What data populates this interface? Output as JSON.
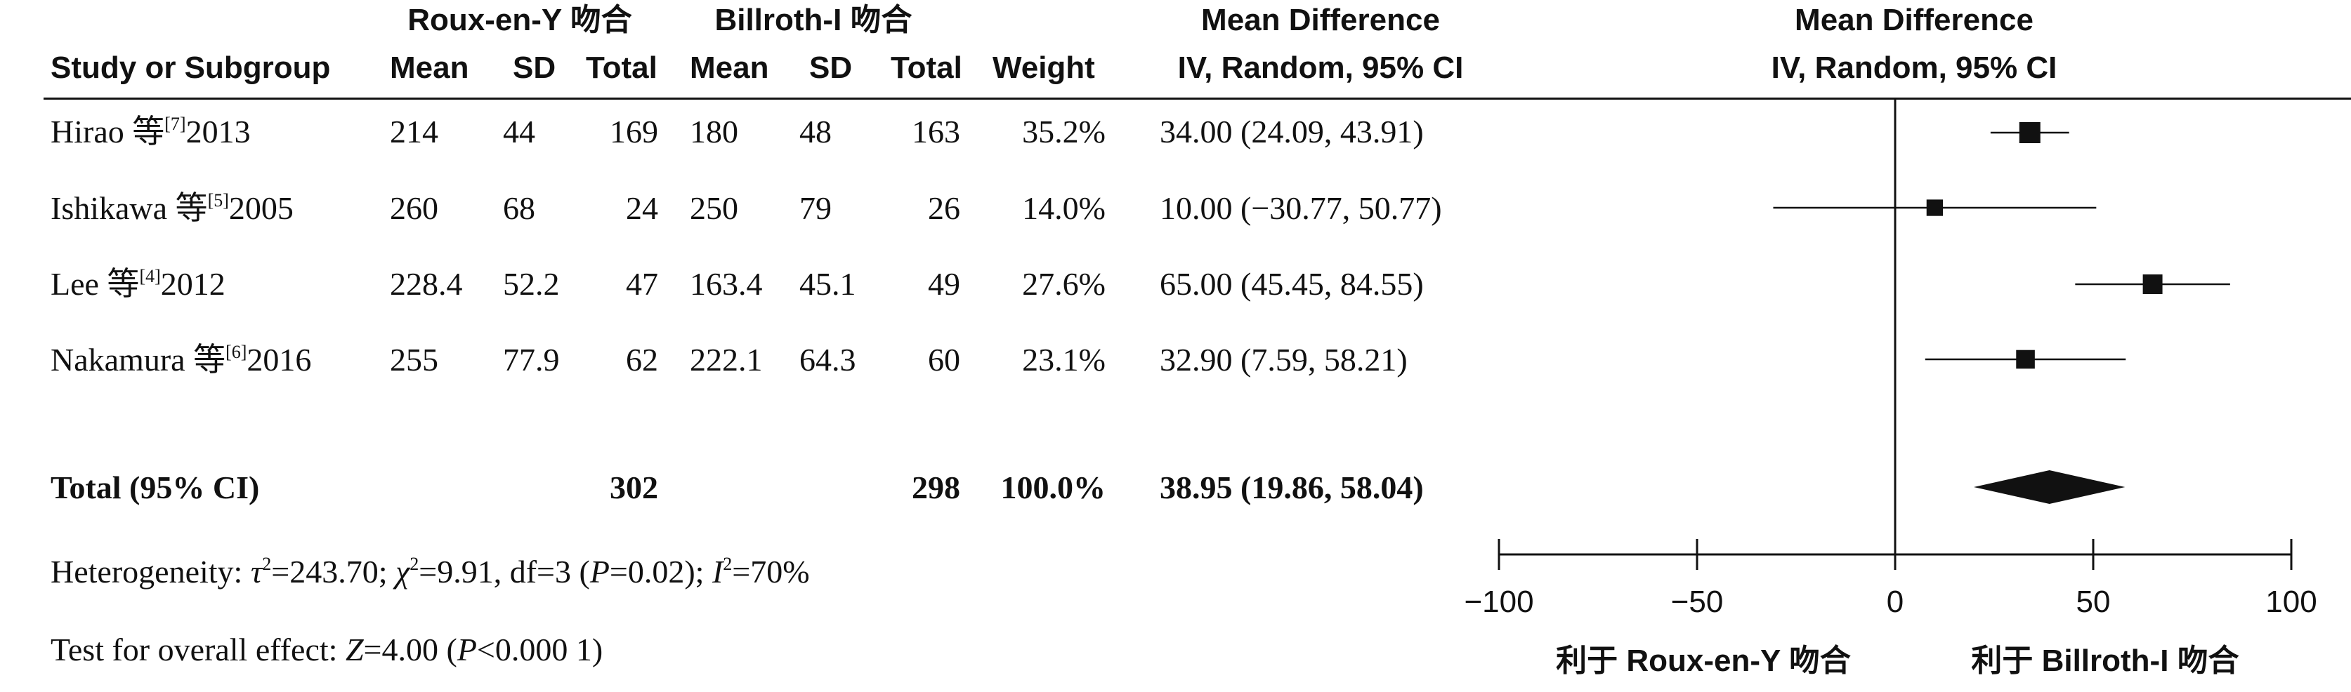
{
  "header": {
    "group1": "Roux-en-Y 吻合",
    "group2": "Billroth-I 吻合",
    "md_title_table": "Mean Difference",
    "md_title_plot": "Mean Difference",
    "study_col": "Study or Subgroup",
    "mean1": "Mean",
    "sd1": "SD",
    "total1": "Total",
    "mean2": "Mean",
    "sd2": "SD",
    "total2": "Total",
    "weight": "Weight",
    "md_method_table": "IV, Random, 95% CI",
    "md_method_plot": "IV, Random, 95% CI"
  },
  "studies": [
    {
      "name": "Hirao 等",
      "ref": "[7]",
      "year": "2013",
      "mean1": "214",
      "sd1": "44",
      "total1": "169",
      "mean2": "180",
      "sd2": "48",
      "total2": "163",
      "weight": "35.2%",
      "ci_text": "34.00 (24.09, 43.91)"
    },
    {
      "name": "Ishikawa 等",
      "ref": "[5]",
      "year": "2005",
      "mean1": "260",
      "sd1": "68",
      "total1": "24",
      "mean2": "250",
      "sd2": "79",
      "total2": "26",
      "weight": "14.0%",
      "ci_text": "10.00 (−30.77, 50.77)"
    },
    {
      "name": "Lee 等",
      "ref": "[4]",
      "year": "2012",
      "mean1": "228.4",
      "sd1": "52.2",
      "total1": "47",
      "mean2": "163.4",
      "sd2": "45.1",
      "total2": "49",
      "weight": "27.6%",
      "ci_text": "65.00 (45.45, 84.55)"
    },
    {
      "name": "Nakamura 等",
      "ref": "[6]",
      "year": "2016",
      "mean1": "255",
      "sd1": "77.9",
      "total1": "62",
      "mean2": "222.1",
      "sd2": "64.3",
      "total2": "60",
      "weight": "23.1%",
      "ci_text": "32.90 (7.59, 58.21)"
    }
  ],
  "total": {
    "label": "Total (95% CI)",
    "total1": "302",
    "total2": "298",
    "weight": "100.0%",
    "ci_text": "38.95 (19.86, 58.04)"
  },
  "heterogeneity": {
    "prefix": "Heterogeneity: ",
    "tau": "τ",
    "tau_rest": "=243.70; ",
    "chi": "χ",
    "chi_rest": "=9.91, df=3 (",
    "p": "P",
    "p_rest": "=0.02); ",
    "i": "I",
    "i_rest": "=70%",
    "sq": "2"
  },
  "overall": {
    "prefix": "Test for overall effect: ",
    "z": "Z",
    "z_rest": "=4.00 (",
    "p": "P",
    "p_rest": "<0.000 1)"
  },
  "axis": {
    "favors_left": "利于 Roux-en-Y 吻合",
    "favors_right": "利于 Billroth-I 吻合"
  },
  "chart_data": {
    "type": "forest",
    "xlim": [
      -100,
      100
    ],
    "ticks": [
      -100,
      -50,
      0,
      50,
      100
    ],
    "tick_labels": [
      "−100",
      "−50",
      "0",
      "50",
      "100"
    ],
    "null_line": 0,
    "studies": [
      {
        "label": "Hirao 等 2013",
        "md": 34.0,
        "lower": 24.09,
        "upper": 43.91,
        "weight": 35.2
      },
      {
        "label": "Ishikawa 等 2005",
        "md": 10.0,
        "lower": -30.77,
        "upper": 50.77,
        "weight": 14.0
      },
      {
        "label": "Lee 等 2012",
        "md": 65.0,
        "lower": 45.45,
        "upper": 84.55,
        "weight": 27.6
      },
      {
        "label": "Nakamura 等 2016",
        "md": 32.9,
        "lower": 7.59,
        "upper": 58.21,
        "weight": 23.1
      }
    ],
    "pooled": {
      "md": 38.95,
      "lower": 19.86,
      "upper": 58.04
    },
    "colors": {
      "marks": "#111111"
    }
  }
}
